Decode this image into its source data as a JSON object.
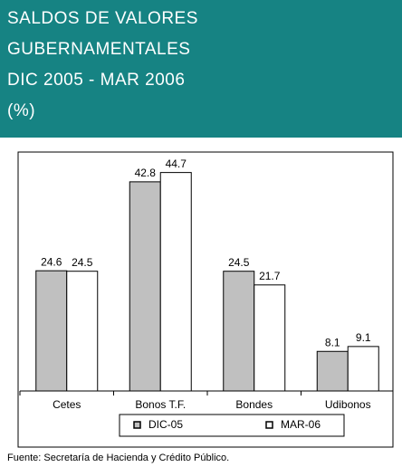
{
  "chart_data": {
    "type": "bar",
    "title": [
      "SALDOS DE VALORES",
      "GUBERNAMENTALES",
      "DIC 2005 - MAR 2006",
      "(%)"
    ],
    "categories": [
      "Cetes",
      "Bonos T.F.",
      "Bondes",
      "Udibonos"
    ],
    "series": [
      {
        "name": "DIC-05",
        "color": "#c0c0c0",
        "values": [
          24.6,
          42.8,
          24.5,
          8.1
        ]
      },
      {
        "name": "MAR-06",
        "color": "#ffffff",
        "values": [
          24.5,
          44.7,
          21.7,
          9.1
        ]
      }
    ],
    "ylim": [
      0,
      50
    ],
    "legend": "bottom",
    "source": "Fuente: Secretaría de Hacienda y Crédito Público."
  }
}
